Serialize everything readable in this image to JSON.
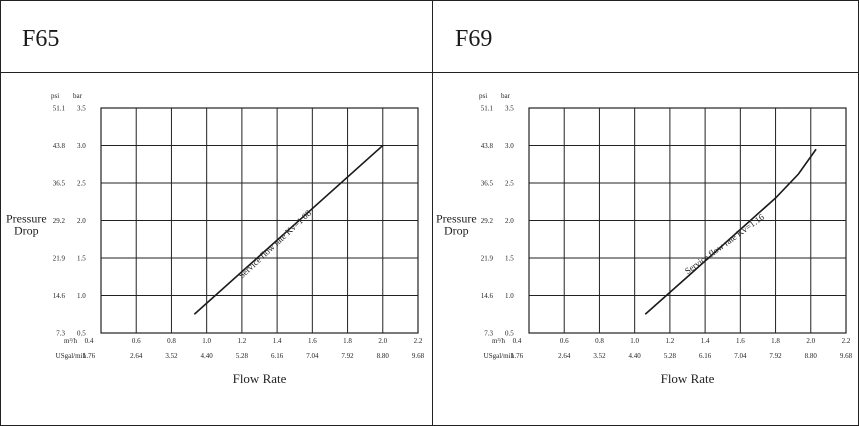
{
  "panels": [
    {
      "title": "F65"
    },
    {
      "title": "F69"
    }
  ],
  "chart_data": [
    {
      "type": "line",
      "title": "F65",
      "xlabel": "Flow Rate",
      "ylabel": "Pressure Drop",
      "y_unit_left": "psi",
      "y_unit_right": "bar",
      "x_unit_primary": "m³/h",
      "x_unit_secondary": "USgal/mih",
      "x_ticks": [
        "0.4",
        "0.6",
        "0.8",
        "1.0",
        "1.2",
        "1.4",
        "1.6",
        "1.8",
        "2.0",
        "2.2"
      ],
      "x_ticks_secondary": [
        "1.76",
        "2.64",
        "3.52",
        "4.40",
        "5.28",
        "6.16",
        "7.04",
        "7.92",
        "8.80",
        "9.68"
      ],
      "y_ticks_bar": [
        "0.5",
        "1.0",
        "1.5",
        "2.0",
        "2.5",
        "3.0",
        "3.5"
      ],
      "y_ticks_psi": [
        "7.3",
        "14.6",
        "21.9",
        "29.2",
        "36.5",
        "43.8",
        "51.1"
      ],
      "xlim": [
        0.4,
        2.2
      ],
      "ylim": [
        0.5,
        3.5
      ],
      "grid": true,
      "series": [
        {
          "name": "Service flow rate Kv=1.08",
          "x": [
            0.93,
            2.0
          ],
          "y": [
            0.75,
            3.0
          ]
        }
      ],
      "annotation": "Service flow rate Kv=1.08"
    },
    {
      "type": "line",
      "title": "F69",
      "xlabel": "Flow Rate",
      "ylabel": "Pressure Drop",
      "y_unit_left": "psi",
      "y_unit_right": "bar",
      "x_unit_primary": "m³/h",
      "x_unit_secondary": "USgal/mih",
      "x_ticks": [
        "0.4",
        "0.6",
        "0.8",
        "1.0",
        "1.2",
        "1.4",
        "1.6",
        "1.8",
        "2.0",
        "2.2"
      ],
      "x_ticks_secondary": [
        "1.76",
        "2.64",
        "3.52",
        "4.40",
        "5.28",
        "6.16",
        "7.04",
        "7.92",
        "8.80",
        "9.68"
      ],
      "y_ticks_bar": [
        "0.5",
        "1.0",
        "1.5",
        "2.0",
        "2.5",
        "3.0",
        "3.5"
      ],
      "y_ticks_psi": [
        "7.3",
        "14.6",
        "21.9",
        "29.2",
        "36.5",
        "43.8",
        "51.1"
      ],
      "xlim": [
        0.4,
        2.2
      ],
      "ylim": [
        0.5,
        3.5
      ],
      "grid": true,
      "series": [
        {
          "name": "Service flow rate Kv=1.16",
          "x": [
            1.06,
            1.3,
            1.6,
            1.8,
            1.93,
            2.03
          ],
          "y": [
            0.75,
            1.25,
            1.88,
            2.3,
            2.62,
            2.95
          ]
        }
      ],
      "annotation": "Service flow rate Kv=1.16"
    }
  ]
}
